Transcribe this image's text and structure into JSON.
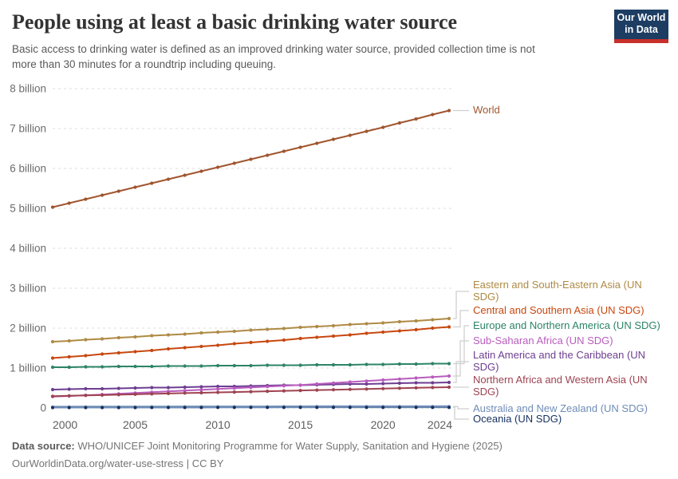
{
  "header": {
    "title": "People using at least a basic drinking water source",
    "subtitle": "Basic access to drinking water is defined as an improved drinking water source, provided collection time is not more than 30 minutes for a roundtrip including queuing.",
    "logo": {
      "line1": "Our World",
      "line2": "in Data",
      "bg_color": "#1d3d63",
      "bar_color": "#c7302b"
    }
  },
  "chart_data": {
    "type": "line",
    "x": [
      2000,
      2001,
      2002,
      2003,
      2004,
      2005,
      2006,
      2007,
      2008,
      2009,
      2010,
      2011,
      2012,
      2013,
      2014,
      2015,
      2016,
      2017,
      2018,
      2019,
      2020,
      2021,
      2022,
      2023,
      2024
    ],
    "x_ticks": [
      "2000",
      "2005",
      "2010",
      "2015",
      "2020",
      "2024"
    ],
    "y_ticks": [
      {
        "value": 0,
        "label": "0"
      },
      {
        "value": 1,
        "label": "1 billion"
      },
      {
        "value": 2,
        "label": "2 billion"
      },
      {
        "value": 3,
        "label": "3 billion"
      },
      {
        "value": 4,
        "label": "4 billion"
      },
      {
        "value": 5,
        "label": "5 billion"
      },
      {
        "value": 6,
        "label": "6 billion"
      },
      {
        "value": 7,
        "label": "7 billion"
      },
      {
        "value": 8,
        "label": "8 billion"
      }
    ],
    "ylim": [
      0,
      8
    ],
    "grid": "dashed-horizontal",
    "legend_position": "right-labels",
    "series": [
      {
        "name": "World",
        "color": "#A0552E",
        "label_lines": [
          "World"
        ],
        "values": [
          5.03,
          5.13,
          5.23,
          5.33,
          5.43,
          5.53,
          5.63,
          5.73,
          5.83,
          5.93,
          6.03,
          6.13,
          6.23,
          6.33,
          6.43,
          6.53,
          6.63,
          6.73,
          6.83,
          6.93,
          7.03,
          7.14,
          7.24,
          7.35,
          7.45
        ]
      },
      {
        "name": "Eastern and South-Eastern Asia (UN SDG)",
        "color": "#AE8A44",
        "label_lines": [
          "Eastern and South-Eastern Asia (UN",
          "SDG)"
        ],
        "values": [
          1.66,
          1.68,
          1.71,
          1.73,
          1.76,
          1.78,
          1.81,
          1.83,
          1.85,
          1.88,
          1.9,
          1.92,
          1.95,
          1.97,
          1.99,
          2.02,
          2.04,
          2.06,
          2.09,
          2.11,
          2.13,
          2.16,
          2.18,
          2.21,
          2.24
        ]
      },
      {
        "name": "Central and Southern Asia (UN SDG)",
        "color": "#C8470F",
        "label_lines": [
          "Central and Southern Asia (UN SDG)"
        ],
        "values": [
          1.25,
          1.28,
          1.31,
          1.35,
          1.38,
          1.41,
          1.44,
          1.48,
          1.51,
          1.54,
          1.57,
          1.61,
          1.64,
          1.67,
          1.7,
          1.74,
          1.77,
          1.8,
          1.83,
          1.87,
          1.9,
          1.93,
          1.96,
          2.0,
          2.03
        ]
      },
      {
        "name": "Europe and Northern America (UN SDG)",
        "color": "#2C8465",
        "label_lines": [
          "Europe and Northern America (UN SDG)"
        ],
        "values": [
          1.02,
          1.02,
          1.03,
          1.03,
          1.04,
          1.04,
          1.04,
          1.05,
          1.05,
          1.05,
          1.06,
          1.06,
          1.06,
          1.07,
          1.07,
          1.07,
          1.08,
          1.08,
          1.08,
          1.09,
          1.09,
          1.1,
          1.1,
          1.11,
          1.11
        ]
      },
      {
        "name": "Sub-Saharan Africa (UN SDG)",
        "color": "#B95CBE",
        "label_lines": [
          "Sub-Saharan Africa (UN SDG)"
        ],
        "values": [
          0.285,
          0.3,
          0.318,
          0.336,
          0.355,
          0.375,
          0.395,
          0.415,
          0.435,
          0.455,
          0.475,
          0.495,
          0.515,
          0.535,
          0.555,
          0.575,
          0.6,
          0.625,
          0.65,
          0.675,
          0.7,
          0.725,
          0.75,
          0.775,
          0.8
        ]
      },
      {
        "name": "Latin America and the Caribbean (UN SDG)",
        "color": "#6D3E91",
        "label_lines": [
          "Latin America and the Caribbean (UN",
          "SDG)"
        ],
        "values": [
          0.46,
          0.47,
          0.48,
          0.48,
          0.49,
          0.5,
          0.51,
          0.51,
          0.52,
          0.53,
          0.54,
          0.54,
          0.55,
          0.56,
          0.57,
          0.57,
          0.58,
          0.59,
          0.6,
          0.6,
          0.61,
          0.62,
          0.63,
          0.63,
          0.64
        ]
      },
      {
        "name": "Northern Africa and Western Asia (UN SDG)",
        "color": "#9E4351",
        "label_lines": [
          "Northern Africa and Western Asia (UN",
          "SDG)"
        ],
        "values": [
          0.295,
          0.304,
          0.314,
          0.323,
          0.333,
          0.342,
          0.352,
          0.361,
          0.371,
          0.38,
          0.39,
          0.399,
          0.409,
          0.418,
          0.428,
          0.437,
          0.447,
          0.456,
          0.466,
          0.475,
          0.485,
          0.494,
          0.504,
          0.513,
          0.52
        ]
      },
      {
        "name": "Australia and New Zealand (UN SDG)",
        "color": "#6E8CB6",
        "label_lines": [
          "Australia and New Zealand (UN SDG)"
        ],
        "values": [
          0.023,
          0.023,
          0.024,
          0.024,
          0.025,
          0.025,
          0.026,
          0.026,
          0.027,
          0.027,
          0.028,
          0.028,
          0.029,
          0.029,
          0.03,
          0.03,
          0.031,
          0.031,
          0.032,
          0.032,
          0.032,
          0.033,
          0.033,
          0.033,
          0.034
        ]
      },
      {
        "name": "Oceania (UN SDG)",
        "color": "#16305F",
        "label_lines": [
          "Oceania (UN SDG)"
        ],
        "values": [
          0.008,
          0.008,
          0.008,
          0.009,
          0.009,
          0.009,
          0.01,
          0.01,
          0.01,
          0.01,
          0.011,
          0.011,
          0.011,
          0.011,
          0.012,
          0.012,
          0.012,
          0.012,
          0.012,
          0.013,
          0.013,
          0.013,
          0.013,
          0.013,
          0.013
        ]
      }
    ]
  },
  "footer": {
    "source_label": "Data source:",
    "source": "WHO/UNICEF Joint Monitoring Programme for Water Supply, Sanitation and Hygiene (2025)",
    "link": "OurWorldinData.org/water-use-stress",
    "separator": "|",
    "license": "CC BY"
  }
}
